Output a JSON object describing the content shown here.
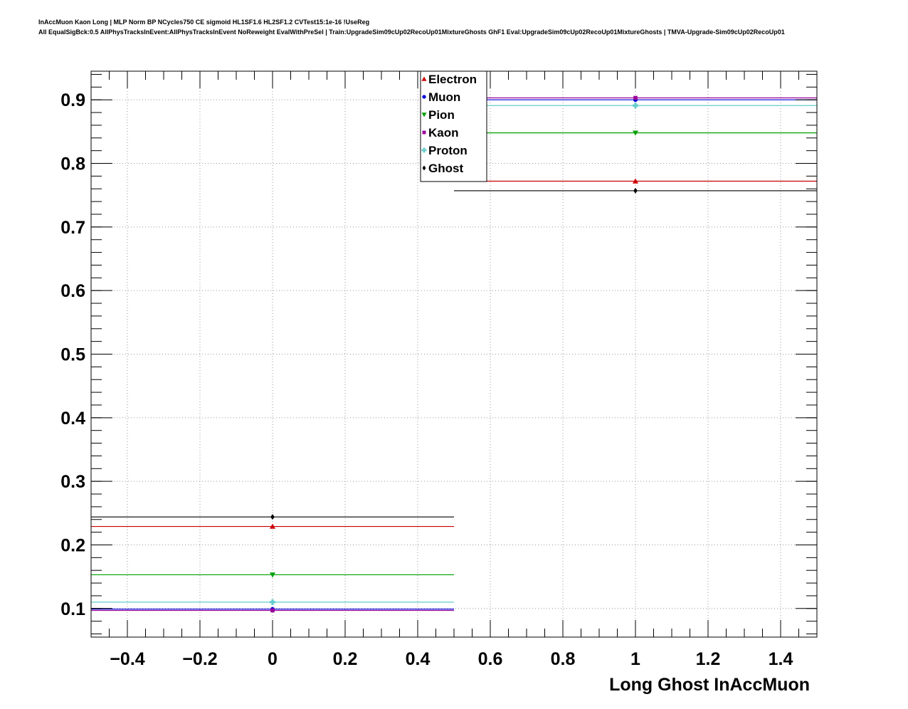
{
  "header": {
    "title_line1": "InAccMuon Kaon Long | MLP Norm BP NCycles750 CE sigmoid HL1SF1.6 HL2SF1.2 CVTest15:1e-16 !UseReg",
    "title_line2": "All EqualSigBck:0.5 AllPhysTracksInEvent:AllPhysTracksInEvent NoReweight EvalWithPreSel | Train:UpgradeSim09cUp02RecoUp01MixtureGhosts GhF1 Eval:UpgradeSim09cUp02RecoUp01MixtureGhosts | TMVA-Upgrade-Sim09cUp02RecoUp01"
  },
  "chart_data": {
    "type": "scatter",
    "xlabel": "Long Ghost InAccMuon",
    "ylabel": "",
    "xlim": [
      -0.5,
      1.5
    ],
    "ylim": [
      0.055,
      0.945
    ],
    "grid": true,
    "legend_position": "top-center",
    "x_ticks": [
      {
        "v": -0.4,
        "label": "−0.4"
      },
      {
        "v": -0.2,
        "label": "−0.2"
      },
      {
        "v": 0,
        "label": "0"
      },
      {
        "v": 0.2,
        "label": "0.2"
      },
      {
        "v": 0.4,
        "label": "0.4"
      },
      {
        "v": 0.6,
        "label": "0.6"
      },
      {
        "v": 0.8,
        "label": "0.8"
      },
      {
        "v": 1,
        "label": "1"
      },
      {
        "v": 1.2,
        "label": "1.2"
      },
      {
        "v": 1.4,
        "label": "1.4"
      }
    ],
    "y_ticks": [
      {
        "v": 0.1,
        "label": "0.1"
      },
      {
        "v": 0.2,
        "label": "0.2"
      },
      {
        "v": 0.3,
        "label": "0.3"
      },
      {
        "v": 0.4,
        "label": "0.4"
      },
      {
        "v": 0.5,
        "label": "0.5"
      },
      {
        "v": 0.6,
        "label": "0.6"
      },
      {
        "v": 0.7,
        "label": "0.7"
      },
      {
        "v": 0.8,
        "label": "0.8"
      },
      {
        "v": 0.9,
        "label": "0.9"
      }
    ],
    "x": [
      0,
      1
    ],
    "x_err": 0.5,
    "series": [
      {
        "name": "Electron",
        "marker": "triangle-up",
        "color": "#cc0000",
        "values": [
          0.229,
          0.772
        ]
      },
      {
        "name": "Muon",
        "marker": "circle",
        "color": "#0000dd",
        "values": [
          0.099,
          0.9
        ]
      },
      {
        "name": "Pion",
        "marker": "triangle-down",
        "color": "#00a000",
        "values": [
          0.153,
          0.848
        ]
      },
      {
        "name": "Kaon",
        "marker": "square",
        "color": "#990099",
        "values": [
          0.097,
          0.903
        ]
      },
      {
        "name": "Proton",
        "marker": "cross",
        "color": "#66cccc",
        "values": [
          0.11,
          0.891
        ]
      },
      {
        "name": "Ghost",
        "marker": "diamond",
        "color": "#000000",
        "values": [
          0.244,
          0.757
        ]
      }
    ]
  }
}
